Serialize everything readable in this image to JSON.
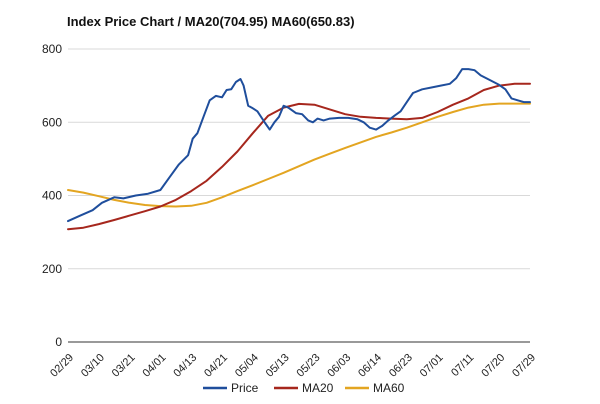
{
  "chart_data": {
    "type": "line",
    "title": "Index Price Chart / MA20(704.95) MA60(650.83)",
    "xlabel": "",
    "ylabel": "",
    "ylim": [
      0,
      800
    ],
    "yticks": [
      "0",
      "200",
      "400",
      "600",
      "800"
    ],
    "xticks": [
      "02/29",
      "03/10",
      "03/21",
      "04/01",
      "04/13",
      "04/21",
      "05/04",
      "05/13",
      "05/23",
      "06/03",
      "06/14",
      "06/23",
      "07/01",
      "07/11",
      "07/20",
      "07/29"
    ],
    "grid": true,
    "legend_position": "bottom",
    "series": [
      {
        "name": "Price",
        "color": "#1f4e9c",
        "values": [
          [
            0,
            330
          ],
          [
            0.4,
            345
          ],
          [
            0.8,
            360
          ],
          [
            1.1,
            380
          ],
          [
            1.5,
            395
          ],
          [
            1.8,
            392
          ],
          [
            2.2,
            400
          ],
          [
            2.6,
            405
          ],
          [
            3.0,
            415
          ],
          [
            3.3,
            450
          ],
          [
            3.6,
            485
          ],
          [
            3.9,
            510
          ],
          [
            4.05,
            555
          ],
          [
            4.2,
            570
          ],
          [
            4.4,
            615
          ],
          [
            4.6,
            660
          ],
          [
            4.8,
            672
          ],
          [
            5.0,
            668
          ],
          [
            5.15,
            688
          ],
          [
            5.3,
            690
          ],
          [
            5.45,
            710
          ],
          [
            5.6,
            718
          ],
          [
            5.7,
            700
          ],
          [
            5.85,
            645
          ],
          [
            6.0,
            638
          ],
          [
            6.15,
            630
          ],
          [
            6.4,
            598
          ],
          [
            6.55,
            580
          ],
          [
            6.7,
            600
          ],
          [
            6.85,
            615
          ],
          [
            7.0,
            645
          ],
          [
            7.15,
            640
          ],
          [
            7.4,
            625
          ],
          [
            7.6,
            622
          ],
          [
            7.8,
            605
          ],
          [
            7.95,
            600
          ],
          [
            8.1,
            610
          ],
          [
            8.3,
            605
          ],
          [
            8.5,
            610
          ],
          [
            8.8,
            612
          ],
          [
            9.1,
            612
          ],
          [
            9.4,
            608
          ],
          [
            9.6,
            600
          ],
          [
            9.8,
            585
          ],
          [
            10.0,
            580
          ],
          [
            10.2,
            590
          ],
          [
            10.4,
            605
          ],
          [
            10.6,
            618
          ],
          [
            10.8,
            630
          ],
          [
            11.0,
            655
          ],
          [
            11.2,
            680
          ],
          [
            11.5,
            690
          ],
          [
            11.8,
            695
          ],
          [
            12.1,
            700
          ],
          [
            12.4,
            705
          ],
          [
            12.6,
            720
          ],
          [
            12.8,
            745
          ],
          [
            13.0,
            745
          ],
          [
            13.2,
            742
          ],
          [
            13.4,
            728
          ],
          [
            13.7,
            715
          ],
          [
            14.0,
            702
          ],
          [
            14.2,
            690
          ],
          [
            14.4,
            665
          ],
          [
            14.6,
            660
          ],
          [
            14.8,
            655
          ],
          [
            15.0,
            655
          ]
        ]
      },
      {
        "name": "MA20",
        "color": "#a6271d",
        "values": [
          [
            0,
            308
          ],
          [
            0.5,
            312
          ],
          [
            1.0,
            322
          ],
          [
            1.5,
            333
          ],
          [
            2.0,
            345
          ],
          [
            2.5,
            357
          ],
          [
            3.0,
            370
          ],
          [
            3.5,
            388
          ],
          [
            4.0,
            412
          ],
          [
            4.5,
            440
          ],
          [
            5.0,
            478
          ],
          [
            5.5,
            520
          ],
          [
            6.0,
            570
          ],
          [
            6.5,
            618
          ],
          [
            7.0,
            640
          ],
          [
            7.5,
            650
          ],
          [
            8.0,
            648
          ],
          [
            8.5,
            635
          ],
          [
            9.0,
            622
          ],
          [
            9.5,
            615
          ],
          [
            10.0,
            612
          ],
          [
            10.5,
            610
          ],
          [
            11.0,
            608
          ],
          [
            11.5,
            612
          ],
          [
            12.0,
            628
          ],
          [
            12.5,
            648
          ],
          [
            13.0,
            665
          ],
          [
            13.5,
            688
          ],
          [
            14.0,
            700
          ],
          [
            14.5,
            705
          ],
          [
            15.0,
            705
          ]
        ]
      },
      {
        "name": "MA60",
        "color": "#e3a521",
        "values": [
          [
            0,
            415
          ],
          [
            0.5,
            408
          ],
          [
            1.0,
            398
          ],
          [
            1.5,
            388
          ],
          [
            2.0,
            380
          ],
          [
            2.5,
            374
          ],
          [
            3.0,
            371
          ],
          [
            3.5,
            370
          ],
          [
            4.0,
            372
          ],
          [
            4.5,
            380
          ],
          [
            5.0,
            395
          ],
          [
            5.5,
            412
          ],
          [
            6.0,
            428
          ],
          [
            6.5,
            445
          ],
          [
            7.0,
            462
          ],
          [
            7.5,
            480
          ],
          [
            8.0,
            498
          ],
          [
            8.5,
            514
          ],
          [
            9.0,
            530
          ],
          [
            9.5,
            545
          ],
          [
            10.0,
            560
          ],
          [
            10.5,
            572
          ],
          [
            11.0,
            585
          ],
          [
            11.5,
            600
          ],
          [
            12.0,
            615
          ],
          [
            12.5,
            628
          ],
          [
            13.0,
            640
          ],
          [
            13.5,
            648
          ],
          [
            14.0,
            651
          ],
          [
            14.5,
            651
          ],
          [
            15.0,
            651
          ]
        ]
      }
    ]
  }
}
